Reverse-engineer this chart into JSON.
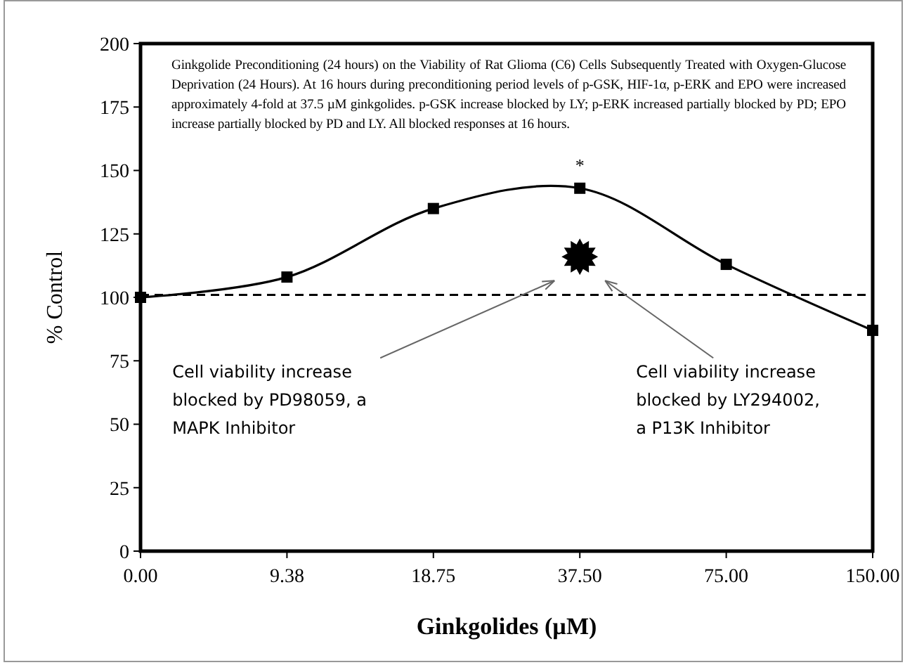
{
  "chart_data": {
    "type": "line",
    "xlabel": "Ginkgolides (µM)",
    "ylabel": "% Control",
    "categories": [
      "0.00",
      "9.38",
      "18.75",
      "37.50",
      "75.00",
      "150.00"
    ],
    "series": [
      {
        "color": "#000000",
        "marker": "square",
        "line_style": "solid",
        "values": [
          100,
          108,
          135,
          143,
          113,
          87
        ]
      },
      {
        "type": "scatter",
        "color": "#000000",
        "marker": "star",
        "values": [
          null,
          null,
          null,
          116,
          null,
          null
        ]
      }
    ],
    "ylim": [
      0,
      200
    ],
    "yticks": [
      0,
      25,
      50,
      75,
      100,
      125,
      150,
      175,
      200
    ],
    "grid": false,
    "ref_lines": [
      {
        "axis": "y",
        "value": 101,
        "color": "#000000",
        "line_style": "dashed"
      }
    ],
    "annotations": [
      "Ginkgolide Preconditioning (24 hours) on the Viability of Rat Glioma (C6) Cells Subsequently Treated with Oxygen-Glucose Deprivation (24 Hours). At 16 hours during preconditioning period levels of p-GSK, HIF-1α, p-ERK and EPO were increased approximately 4-fold at 37.5 µM ginkgolides. p-GSK increase blocked by LY; p-ERK increased partially blocked by PD; EPO increase partially blocked by PD and LY. All blocked responses at 16 hours.",
      "*",
      "Cell viability increase\nblocked by PD98059, a\nMAPK Inhibitor",
      "Cell viability increase\nblocked by LY294002,\na P13K Inhibitor"
    ]
  }
}
